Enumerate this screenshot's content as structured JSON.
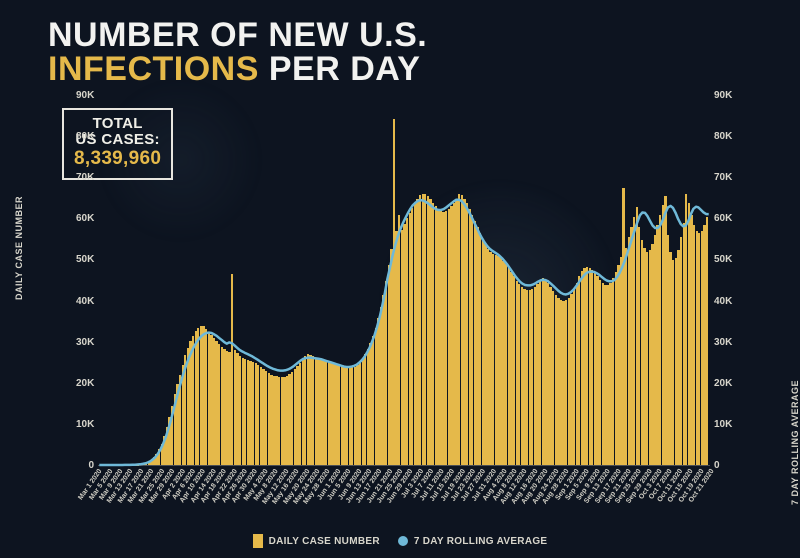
{
  "title": {
    "line1_pre": "NUMBER OF NEW U.S.",
    "line2_highlight": "INFECTIONS",
    "line2_post": " PER DAY",
    "fontsize": 34,
    "color_main": "#f2f2f0",
    "color_highlight": "#e5b94a"
  },
  "total_box": {
    "label_line1": "TOTAL",
    "label_line2": "US CASES:",
    "value": "8,339,960",
    "border_color": "#e8e6df",
    "value_color": "#e5b94a",
    "label_fontsize": 15,
    "value_fontsize": 19
  },
  "chart": {
    "type": "bar+line",
    "background_color": "#0d1420",
    "bar_color": "#e5b94a",
    "line_color": "#6fb9d8",
    "line_width": 2.5,
    "line_marker": "circle",
    "line_marker_size": 2,
    "ylim": [
      0,
      90000
    ],
    "ytick_step": 10000,
    "ytick_labels": [
      "0",
      "10K",
      "20K",
      "30K",
      "40K",
      "50K",
      "60K",
      "70K",
      "80K",
      "90K"
    ],
    "y_axis_label_left": "DAILY CASE NUMBER",
    "y_axis_label_right": "7 DAY ROLLING AVERAGE",
    "label_fontsize": 9,
    "tick_fontsize": 10,
    "xlabel_fontsize": 7,
    "xlabel_rotation": -55,
    "n_bars": 230,
    "daily_cases": [
      1,
      1,
      1,
      2,
      2,
      3,
      4,
      5,
      6,
      8,
      12,
      18,
      25,
      40,
      70,
      120,
      200,
      350,
      550,
      850,
      1300,
      1900,
      2700,
      3800,
      5200,
      7000,
      9200,
      11800,
      14500,
      17200,
      19800,
      22000,
      24500,
      26800,
      28500,
      30200,
      31500,
      32800,
      33500,
      34000,
      33800,
      33200,
      32500,
      31800,
      31000,
      30200,
      29500,
      28800,
      28200,
      27800,
      27500,
      46500,
      28000,
      27200,
      26500,
      26000,
      25800,
      25600,
      25400,
      25200,
      25000,
      24500,
      24000,
      23500,
      23000,
      22500,
      22000,
      21800,
      21600,
      21500,
      21400,
      21500,
      21800,
      22200,
      22800,
      23500,
      24200,
      25000,
      25800,
      26500,
      27000,
      26800,
      26500,
      26200,
      26000,
      25800,
      25600,
      25400,
      25200,
      25000,
      24800,
      24600,
      24400,
      24200,
      24000,
      23800,
      23600,
      23800,
      24000,
      24500,
      25200,
      26000,
      27000,
      28200,
      29800,
      31500,
      33500,
      35800,
      38500,
      41500,
      45000,
      48800,
      52800,
      84500,
      57000,
      61000,
      57200,
      58800,
      60200,
      61500,
      62800,
      64000,
      65000,
      65800,
      66200,
      66000,
      65500,
      64800,
      64000,
      63200,
      62500,
      62000,
      61800,
      62000,
      62500,
      63200,
      64000,
      65000,
      66200,
      65800,
      65000,
      63800,
      62500,
      61000,
      59500,
      58000,
      56500,
      55000,
      53800,
      52800,
      52000,
      51500,
      51200,
      51000,
      50500,
      49800,
      49000,
      48000,
      47000,
      46000,
      45000,
      44200,
      43500,
      43000,
      42800,
      42800,
      43000,
      43500,
      44200,
      45000,
      45500,
      45200,
      44500,
      43500,
      42500,
      41500,
      40800,
      40200,
      40000,
      40200,
      40800,
      41800,
      43000,
      44500,
      46000,
      47200,
      48000,
      48200,
      48000,
      47500,
      46800,
      46000,
      45200,
      44500,
      44000,
      44000,
      44500,
      45500,
      47000,
      48800,
      50800,
      67500,
      53000,
      55500,
      58000,
      60500,
      63000,
      58000,
      55000,
      53000,
      52000,
      52500,
      54000,
      56000,
      58500,
      61000,
      63500,
      65500,
      56000,
      52000,
      50000,
      50500,
      52500,
      55500,
      59000,
      66000,
      64000,
      61000,
      58500,
      57000,
      56500,
      57000,
      58500,
      60500
    ],
    "rolling_avg": [
      1,
      1,
      1,
      2,
      2,
      3,
      4,
      5,
      7,
      10,
      15,
      22,
      32,
      48,
      72,
      110,
      170,
      260,
      400,
      600,
      900,
      1350,
      1950,
      2750,
      3800,
      5100,
      6700,
      8600,
      10800,
      13100,
      15500,
      17900,
      20200,
      22300,
      24200,
      25900,
      27400,
      28700,
      29800,
      30700,
      31400,
      31900,
      32200,
      32300,
      32200,
      31900,
      31500,
      31000,
      30500,
      30000,
      29600,
      29900,
      29700,
      29200,
      28600,
      28100,
      27700,
      27400,
      27100,
      26800,
      26500,
      26100,
      25700,
      25300,
      24900,
      24500,
      24100,
      23800,
      23500,
      23300,
      23100,
      23000,
      23000,
      23100,
      23300,
      23600,
      24000,
      24500,
      25000,
      25500,
      25900,
      26100,
      26200,
      26200,
      26100,
      26000,
      25900,
      25800,
      25600,
      25400,
      25200,
      25000,
      24800,
      24600,
      24400,
      24200,
      24000,
      23900,
      23900,
      24000,
      24200,
      24500,
      25000,
      25600,
      26400,
      27400,
      28600,
      30100,
      31800,
      33800,
      36200,
      38900,
      42000,
      45400,
      48200,
      51000,
      53500,
      55600,
      57400,
      58900,
      60200,
      61400,
      62500,
      63400,
      64000,
      64400,
      64600,
      64500,
      64200,
      63800,
      63300,
      62800,
      62400,
      62200,
      62200,
      62400,
      62800,
      63300,
      63800,
      64300,
      64700,
      64700,
      64400,
      63700,
      62800,
      61700,
      60500,
      59200,
      57900,
      56600,
      55400,
      54400,
      53500,
      52800,
      52300,
      51900,
      51500,
      51000,
      50400,
      49700,
      48900,
      48000,
      47100,
      46200,
      45400,
      44700,
      44200,
      43900,
      43800,
      43800,
      44000,
      44300,
      44700,
      45000,
      45200,
      45100,
      44800,
      44300,
      43700,
      43100,
      42500,
      42000,
      41700,
      41600,
      41800,
      42200,
      42800,
      43600,
      44500,
      45400,
      46200,
      46800,
      47100,
      47200,
      47100,
      46800,
      46400,
      45900,
      45400,
      45000,
      44800,
      44800,
      45100,
      45800,
      46800,
      48100,
      49700,
      51500,
      53500,
      55400,
      57300,
      59200,
      60900,
      61600,
      61500,
      60700,
      59500,
      58400,
      57800,
      57800,
      58500,
      59800,
      61500,
      62800,
      63200,
      62700,
      61500,
      60000,
      58800,
      58200,
      58400,
      59500,
      61200,
      62500,
      63000,
      62800,
      62200,
      61600,
      61200,
      61200
    ],
    "x_labels": [
      "Mar 1 2020",
      "Mar 5 2020",
      "Mar 9 2020",
      "Mar 13 2020",
      "Mar 17 2020",
      "Mar 21 2020",
      "Mar 25 2020",
      "Mar 29 2020",
      "Apr 2 2020",
      "Apr 6 2020",
      "Apr 10 2020",
      "Apr 14 2020",
      "Apr 18 2020",
      "Apr 22 2020",
      "Apr 26 2020",
      "Apr 30 2020",
      "May 4 2020",
      "May 8 2020",
      "May 12 2020",
      "May 16 2020",
      "May 20 2020",
      "May 24 2020",
      "May 28 2020",
      "Jun 1 2020",
      "Jun 5 2020",
      "Jun 9 2020",
      "Jun 13 2020",
      "Jun 17 2020",
      "Jun 21 2020",
      "Jun 25 2020",
      "Jun 29 2020",
      "Jul 3 2020",
      "Jul 7 2020",
      "Jul 11 2020",
      "Jul 15 2020",
      "Jul 19 2020",
      "Jul 23 2020",
      "Jul 27 2020",
      "Jul 31 2020",
      "Aug 4 2020",
      "Aug 8 2020",
      "Aug 12 2020",
      "Aug 16 2020",
      "Aug 20 2020",
      "Aug 24 2020",
      "Aug 28 2020",
      "Sep 1 2020",
      "Sep 5 2020",
      "Sep 9 2020",
      "Sep 13 2020",
      "Sep 17 2020",
      "Sep 21 2020",
      "Sep 25 2020",
      "Sep 29 2020",
      "Oct 3 2020",
      "Oct 7 2020",
      "Oct 11 2020",
      "Oct 15 2020",
      "Oct 19 2020",
      "Oct 21 2020"
    ]
  },
  "legend": {
    "bar_label": "DAILY CASE NUMBER",
    "line_label": "7 DAY ROLLING AVERAGE",
    "bar_color": "#e5b94a",
    "line_color": "#6fb9d8",
    "fontsize": 10
  }
}
